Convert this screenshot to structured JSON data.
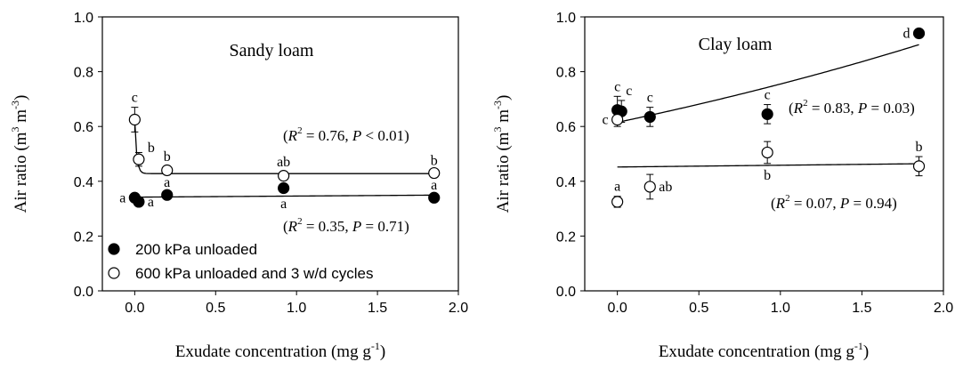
{
  "chart_data": [
    {
      "type": "scatter",
      "title": "Sandy loam",
      "xlabel": "Exudate concentration (mg g",
      "xlabel_sup": "-1",
      "xlabel_end": ")",
      "ylabel": "Air ratio (m",
      "ylabel_sup1": "3",
      "ylabel_mid": " m",
      "ylabel_sup2": "-3",
      "ylabel_end": ")",
      "xlim": [
        -0.2,
        2.0
      ],
      "ylim": [
        0.0,
        1.0
      ],
      "xticks": [
        "0.0",
        "0.5",
        "1.0",
        "1.5",
        "2.0"
      ],
      "yticks": [
        "0.0",
        "0.2",
        "0.4",
        "0.6",
        "0.8",
        "1.0"
      ],
      "legend": {
        "placement": "bottom-left",
        "items": [
          "200 kPa unloaded",
          "600 kPa unloaded and 3 w/d cycles"
        ]
      },
      "series": [
        {
          "name": "200 kPa unloaded",
          "marker": "filled",
          "points": [
            {
              "x": 0.0,
              "y": 0.34,
              "err": 0.015,
              "label": "a",
              "label_pos": "left"
            },
            {
              "x": 0.025,
              "y": 0.325,
              "err": 0.01,
              "label": "a",
              "label_pos": "right"
            },
            {
              "x": 0.2,
              "y": 0.35,
              "err": 0.01,
              "label": "a",
              "label_pos": "above"
            },
            {
              "x": 0.92,
              "y": 0.375,
              "err": 0.015,
              "label": "a",
              "label_pos": "below"
            },
            {
              "x": 1.85,
              "y": 0.34,
              "err": 0.01,
              "label": "a",
              "label_pos": "above"
            }
          ],
          "fit_type": "flat",
          "fit_stats": {
            "R2": "0.35",
            "P": "0.71",
            "P_op": "="
          }
        },
        {
          "name": "600 kPa unloaded and 3 w/d cycles",
          "marker": "open",
          "points": [
            {
              "x": 0.0,
              "y": 0.625,
              "err": 0.045,
              "label": "c",
              "label_pos": "above"
            },
            {
              "x": 0.025,
              "y": 0.48,
              "err": 0.025,
              "label": "b",
              "label_pos": "right-up"
            },
            {
              "x": 0.2,
              "y": 0.44,
              "err": 0.015,
              "label": "b",
              "label_pos": "above"
            },
            {
              "x": 0.92,
              "y": 0.42,
              "err": 0.015,
              "label": "ab",
              "label_pos": "above"
            },
            {
              "x": 1.85,
              "y": 0.43,
              "err": 0.01,
              "label": "b",
              "label_pos": "above"
            }
          ],
          "fit_type": "decay",
          "fit_stats": {
            "R2": "0.76",
            "P": "0.01",
            "P_op": "<"
          }
        }
      ]
    },
    {
      "type": "scatter",
      "title": "Clay loam",
      "xlabel": "Exudate concentration (mg g",
      "xlabel_sup": "-1",
      "xlabel_end": ")",
      "ylabel": "Air ratio (m",
      "ylabel_sup1": "3",
      "ylabel_mid": " m",
      "ylabel_sup2": "-3",
      "ylabel_end": ")",
      "xlim": [
        -0.2,
        2.0
      ],
      "ylim": [
        0.0,
        1.0
      ],
      "xticks": [
        "0.0",
        "0.5",
        "1.0",
        "1.5",
        "2.0"
      ],
      "yticks": [
        "0.0",
        "0.2",
        "0.4",
        "0.6",
        "0.8",
        "1.0"
      ],
      "series": [
        {
          "name": "200 kPa unloaded",
          "marker": "filled",
          "points": [
            {
              "x": 0.0,
              "y": 0.66,
              "err": 0.05,
              "label": "c",
              "label_pos": "above"
            },
            {
              "x": 0.025,
              "y": 0.655,
              "err": 0.04,
              "label": "c",
              "label_pos": "above-right"
            },
            {
              "x": 0.2,
              "y": 0.635,
              "err": 0.035,
              "label": "c",
              "label_pos": "above"
            },
            {
              "x": 0.92,
              "y": 0.645,
              "err": 0.035,
              "label": "c",
              "label_pos": "above"
            },
            {
              "x": 1.85,
              "y": 0.94,
              "err": 0.015,
              "label": "d",
              "label_pos": "left"
            }
          ],
          "fit_type": "exp_up",
          "fit_stats": {
            "R2": "0.83",
            "P": "0.03",
            "P_op": "="
          }
        },
        {
          "name": "600 kPa unloaded and 3 w/d cycles",
          "marker": "open",
          "points": [
            {
              "x": 0.0,
              "y": 0.625,
              "err": 0.025,
              "label": "c",
              "label_pos": "left"
            },
            {
              "x": 0.0,
              "y": 0.325,
              "err": 0.02,
              "label": "a",
              "label_pos": "above"
            },
            {
              "x": 0.2,
              "y": 0.38,
              "err": 0.045,
              "label": "ab",
              "label_pos": "right"
            },
            {
              "x": 0.92,
              "y": 0.505,
              "err": 0.04,
              "label": "b",
              "label_pos": "below"
            },
            {
              "x": 1.85,
              "y": 0.455,
              "err": 0.035,
              "label": "b",
              "label_pos": "above"
            }
          ],
          "fit_type": "linear",
          "fit_stats": {
            "R2": "0.07",
            "P": "0.94",
            "P_op": "="
          }
        }
      ]
    }
  ]
}
